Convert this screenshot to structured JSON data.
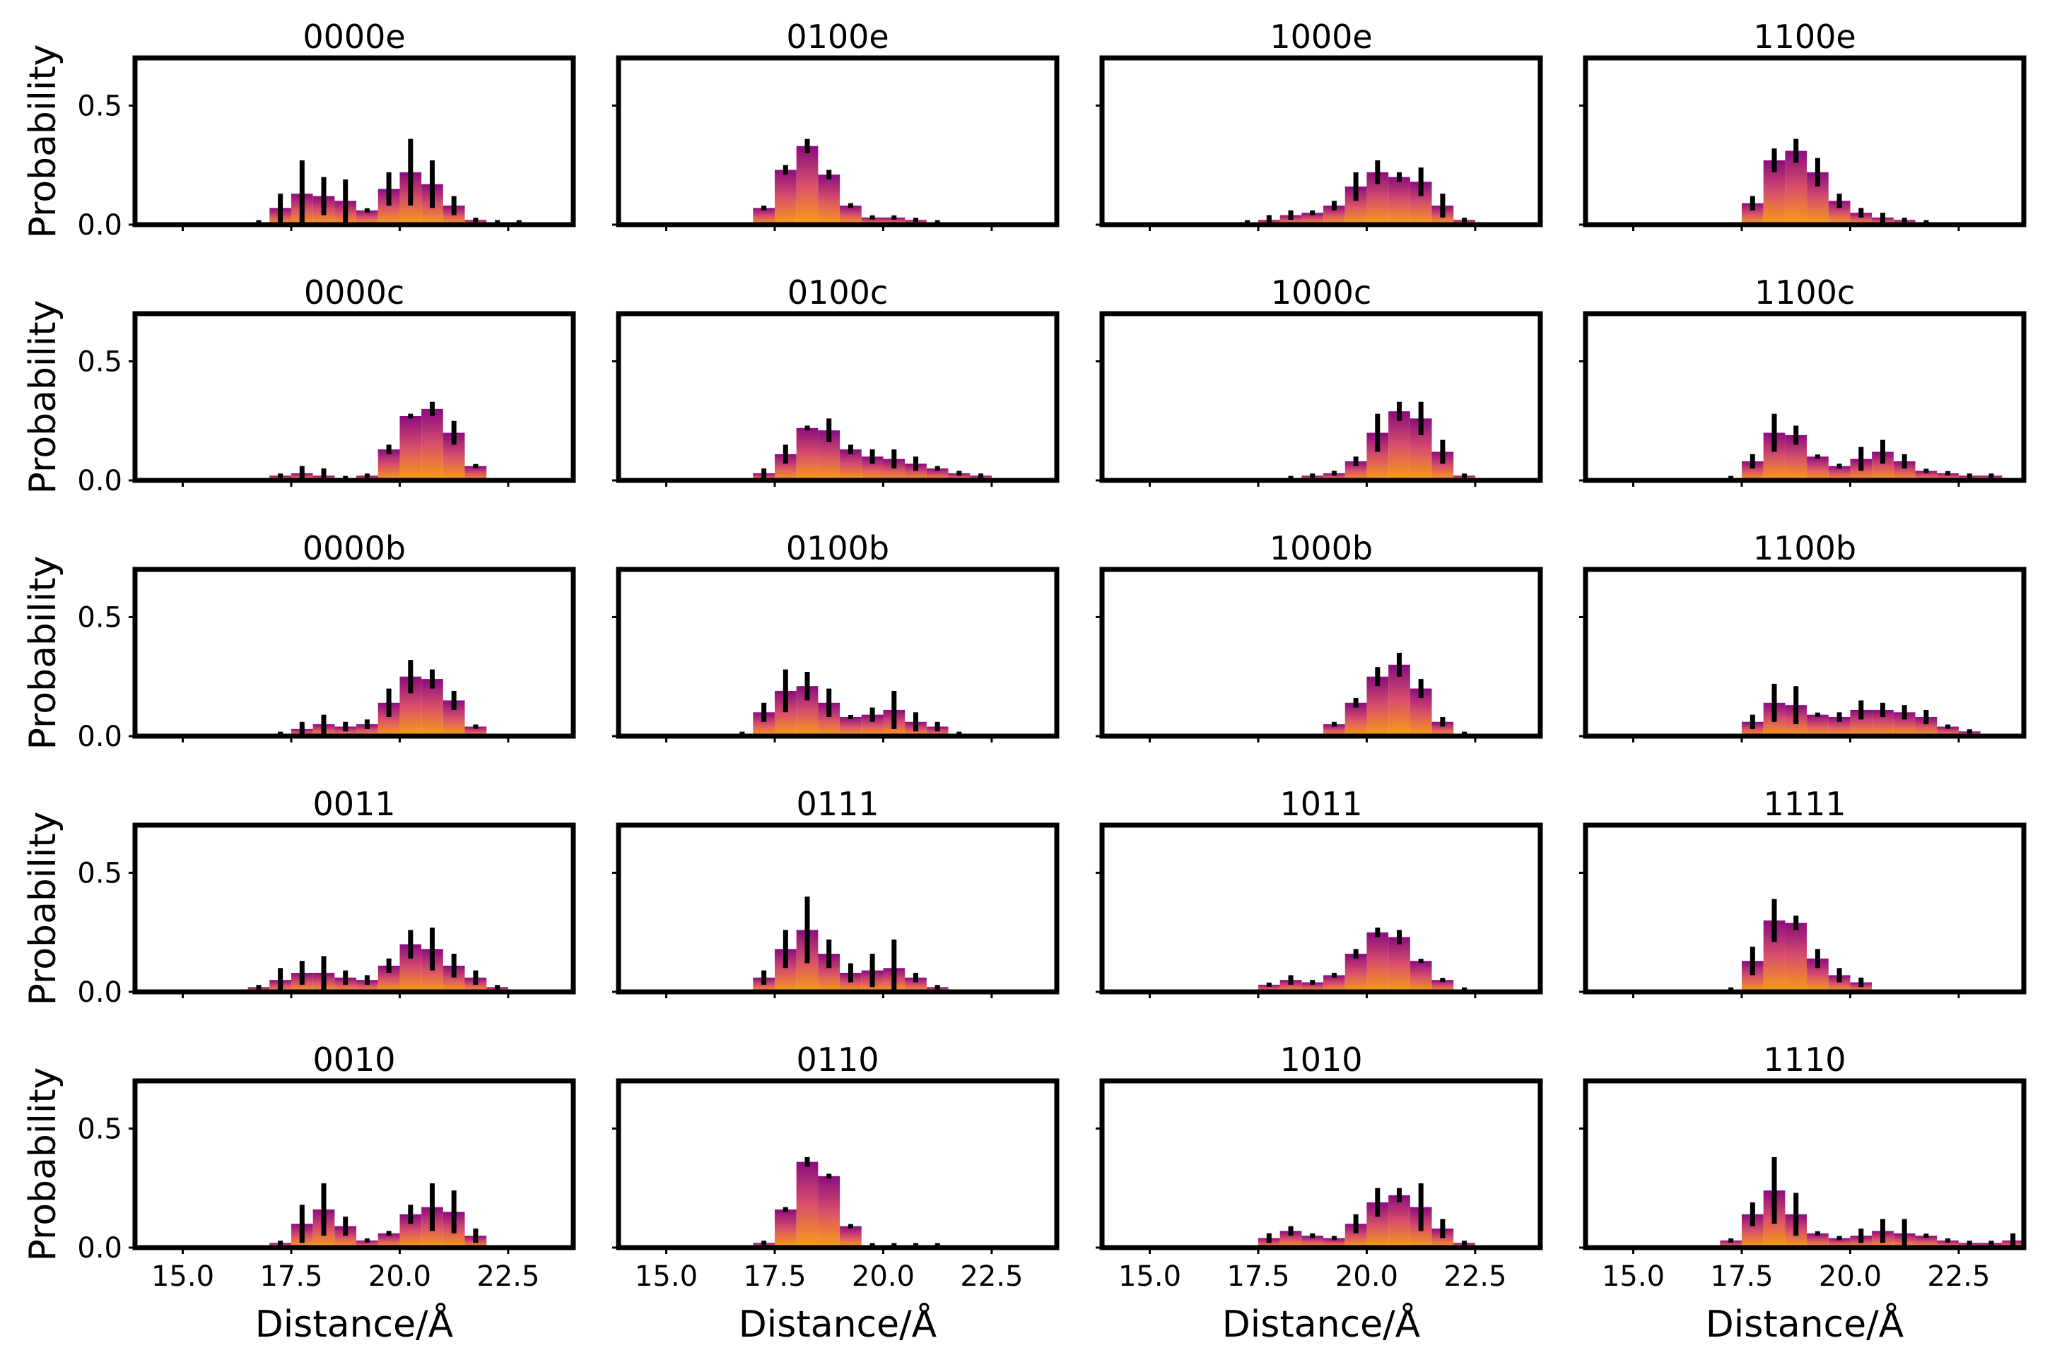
{
  "figure": {
    "xlabel": "Distance/Å",
    "ylabel": "Probability",
    "x_ticks": [
      "15.0",
      "17.5",
      "20.0",
      "22.5"
    ],
    "y_ticks": [
      "0.0",
      "0.5"
    ],
    "colors": {
      "bar_top": "#8a0c80",
      "bar_bottom": "#f79f13",
      "error_bar": "#000000",
      "frame": "#000000"
    }
  },
  "chart_data": [
    {
      "type": "bar",
      "title": "0000e",
      "xlim": [
        13.9,
        24.0
      ],
      "ylim": [
        0,
        0.7
      ],
      "bin_width": 0.5,
      "x": [
        16.75,
        17.25,
        17.75,
        18.25,
        18.75,
        19.25,
        19.75,
        20.25,
        20.75,
        21.25,
        21.75,
        22.25,
        22.75
      ],
      "values": [
        0.01,
        0.07,
        0.13,
        0.12,
        0.1,
        0.06,
        0.15,
        0.22,
        0.17,
        0.08,
        0.02,
        0.01,
        0.01
      ],
      "errors": [
        0,
        0.06,
        0.14,
        0.08,
        0.09,
        0,
        0.07,
        0.14,
        0.1,
        0.04,
        0,
        0,
        0
      ]
    },
    {
      "type": "bar",
      "title": "0100e",
      "xlim": [
        13.9,
        24.0
      ],
      "ylim": [
        0,
        0.7
      ],
      "bin_width": 0.5,
      "x": [
        17.25,
        17.75,
        18.25,
        18.75,
        19.25,
        19.75,
        20.25,
        20.75,
        21.25
      ],
      "values": [
        0.07,
        0.23,
        0.33,
        0.21,
        0.08,
        0.03,
        0.03,
        0.02,
        0.01
      ],
      "errors": [
        0.01,
        0.02,
        0.03,
        0.02,
        0.01,
        0,
        0,
        0,
        0
      ]
    },
    {
      "type": "bar",
      "title": "1000e",
      "xlim": [
        13.9,
        24.0
      ],
      "ylim": [
        0,
        0.7
      ],
      "bin_width": 0.5,
      "x": [
        17.25,
        17.75,
        18.25,
        18.75,
        19.25,
        19.75,
        20.25,
        20.75,
        21.25,
        21.75,
        22.25
      ],
      "values": [
        0.01,
        0.02,
        0.04,
        0.05,
        0.08,
        0.16,
        0.22,
        0.2,
        0.18,
        0.08,
        0.02
      ],
      "errors": [
        0,
        0.02,
        0.02,
        0.01,
        0.02,
        0.06,
        0.05,
        0.02,
        0.06,
        0.05,
        0
      ]
    },
    {
      "type": "bar",
      "title": "1100e",
      "xlim": [
        13.9,
        24.0
      ],
      "ylim": [
        0,
        0.7
      ],
      "bin_width": 0.5,
      "x": [
        17.75,
        18.25,
        18.75,
        19.25,
        19.75,
        20.25,
        20.75,
        21.25,
        21.75
      ],
      "values": [
        0.09,
        0.27,
        0.31,
        0.22,
        0.1,
        0.05,
        0.03,
        0.02,
        0.01
      ],
      "errors": [
        0.03,
        0.05,
        0.05,
        0.06,
        0.03,
        0.02,
        0.02,
        0,
        0
      ]
    },
    {
      "type": "bar",
      "title": "0000c",
      "xlim": [
        13.9,
        24.0
      ],
      "ylim": [
        0,
        0.7
      ],
      "bin_width": 0.5,
      "x": [
        17.25,
        17.75,
        18.25,
        18.75,
        19.25,
        19.75,
        20.25,
        20.75,
        21.25,
        21.75
      ],
      "values": [
        0.02,
        0.03,
        0.02,
        0.01,
        0.02,
        0.13,
        0.27,
        0.3,
        0.2,
        0.06
      ],
      "errors": [
        0,
        0.03,
        0.03,
        0,
        0,
        0.02,
        0.01,
        0.03,
        0.05,
        0
      ]
    },
    {
      "type": "bar",
      "title": "0100c",
      "xlim": [
        13.9,
        24.0
      ],
      "ylim": [
        0,
        0.7
      ],
      "bin_width": 0.5,
      "x": [
        17.25,
        17.75,
        18.25,
        18.75,
        19.25,
        19.75,
        20.25,
        20.75,
        21.25,
        21.75,
        22.25
      ],
      "values": [
        0.03,
        0.11,
        0.22,
        0.21,
        0.13,
        0.1,
        0.09,
        0.07,
        0.05,
        0.03,
        0.02
      ],
      "errors": [
        0.02,
        0.04,
        0.01,
        0.05,
        0.02,
        0.03,
        0.04,
        0.03,
        0.01,
        0.01,
        0
      ]
    },
    {
      "type": "bar",
      "title": "1000c",
      "xlim": [
        13.9,
        24.0
      ],
      "ylim": [
        0,
        0.7
      ],
      "bin_width": 0.5,
      "x": [
        18.25,
        18.75,
        19.25,
        19.75,
        20.25,
        20.75,
        21.25,
        21.75,
        22.25
      ],
      "values": [
        0.01,
        0.02,
        0.03,
        0.08,
        0.2,
        0.29,
        0.26,
        0.12,
        0.02
      ],
      "errors": [
        0,
        0,
        0.01,
        0.02,
        0.08,
        0.04,
        0.07,
        0.05,
        0
      ]
    },
    {
      "type": "bar",
      "title": "1100c",
      "xlim": [
        13.9,
        24.0
      ],
      "ylim": [
        0,
        0.7
      ],
      "bin_width": 0.5,
      "x": [
        17.25,
        17.75,
        18.25,
        18.75,
        19.25,
        19.75,
        20.25,
        20.75,
        21.25,
        21.75,
        22.25,
        22.75,
        23.25
      ],
      "values": [
        0.01,
        0.08,
        0.2,
        0.19,
        0.1,
        0.06,
        0.09,
        0.12,
        0.08,
        0.04,
        0.03,
        0.02,
        0.02
      ],
      "errors": [
        0,
        0.03,
        0.08,
        0.04,
        0,
        0.01,
        0.05,
        0.05,
        0.03,
        0,
        0,
        0,
        0
      ]
    },
    {
      "type": "bar",
      "title": "0000b",
      "xlim": [
        13.9,
        24.0
      ],
      "ylim": [
        0,
        0.7
      ],
      "bin_width": 0.5,
      "x": [
        17.25,
        17.75,
        18.25,
        18.75,
        19.25,
        19.75,
        20.25,
        20.75,
        21.25,
        21.75
      ],
      "values": [
        0.01,
        0.03,
        0.05,
        0.04,
        0.05,
        0.14,
        0.25,
        0.24,
        0.15,
        0.04
      ],
      "errors": [
        0,
        0.03,
        0.04,
        0.02,
        0.02,
        0.06,
        0.07,
        0.04,
        0.04,
        0
      ]
    },
    {
      "type": "bar",
      "title": "0100b",
      "xlim": [
        13.9,
        24.0
      ],
      "ylim": [
        0,
        0.7
      ],
      "bin_width": 0.5,
      "x": [
        16.75,
        17.25,
        17.75,
        18.25,
        18.75,
        19.25,
        19.75,
        20.25,
        20.75,
        21.25,
        21.75
      ],
      "values": [
        0.01,
        0.1,
        0.19,
        0.21,
        0.14,
        0.08,
        0.09,
        0.11,
        0.06,
        0.04,
        0.01
      ],
      "errors": [
        0,
        0.04,
        0.09,
        0.06,
        0.06,
        0,
        0.03,
        0.08,
        0.04,
        0.02,
        0
      ]
    },
    {
      "type": "bar",
      "title": "1000b",
      "xlim": [
        13.9,
        24.0
      ],
      "ylim": [
        0,
        0.7
      ],
      "bin_width": 0.5,
      "x": [
        19.25,
        19.75,
        20.25,
        20.75,
        21.25,
        21.75,
        22.25
      ],
      "values": [
        0.05,
        0.14,
        0.25,
        0.3,
        0.2,
        0.06,
        0.01
      ],
      "errors": [
        0.01,
        0.02,
        0.04,
        0.05,
        0.04,
        0.02,
        0
      ]
    },
    {
      "type": "bar",
      "title": "1100b",
      "xlim": [
        13.9,
        24.0
      ],
      "ylim": [
        0,
        0.7
      ],
      "bin_width": 0.5,
      "x": [
        17.75,
        18.25,
        18.75,
        19.25,
        19.75,
        20.25,
        20.75,
        21.25,
        21.75,
        22.25,
        22.75
      ],
      "values": [
        0.06,
        0.14,
        0.13,
        0.09,
        0.08,
        0.11,
        0.11,
        0.1,
        0.08,
        0.04,
        0.02
      ],
      "errors": [
        0.03,
        0.08,
        0.08,
        0,
        0.02,
        0.04,
        0.03,
        0.03,
        0.03,
        0,
        0
      ]
    },
    {
      "type": "bar",
      "title": "0011",
      "xlim": [
        13.9,
        24.0
      ],
      "ylim": [
        0,
        0.7
      ],
      "bin_width": 0.5,
      "x": [
        16.75,
        17.25,
        17.75,
        18.25,
        18.75,
        19.25,
        19.75,
        20.25,
        20.75,
        21.25,
        21.75,
        22.25
      ],
      "values": [
        0.02,
        0.05,
        0.08,
        0.08,
        0.06,
        0.05,
        0.11,
        0.2,
        0.18,
        0.11,
        0.06,
        0.02
      ],
      "errors": [
        0,
        0.05,
        0.05,
        0.07,
        0.03,
        0.02,
        0.03,
        0.06,
        0.09,
        0.05,
        0.03,
        0
      ]
    },
    {
      "type": "bar",
      "title": "0111",
      "xlim": [
        13.9,
        24.0
      ],
      "ylim": [
        0,
        0.7
      ],
      "bin_width": 0.5,
      "x": [
        17.25,
        17.75,
        18.25,
        18.75,
        19.25,
        19.75,
        20.25,
        20.75,
        21.25
      ],
      "values": [
        0.06,
        0.18,
        0.26,
        0.16,
        0.08,
        0.09,
        0.1,
        0.06,
        0.02
      ],
      "errors": [
        0.03,
        0.08,
        0.14,
        0.06,
        0.04,
        0.07,
        0.12,
        0.02,
        0
      ]
    },
    {
      "type": "bar",
      "title": "1011",
      "xlim": [
        13.9,
        24.0
      ],
      "ylim": [
        0,
        0.7
      ],
      "bin_width": 0.5,
      "x": [
        17.75,
        18.25,
        18.75,
        19.25,
        19.75,
        20.25,
        20.75,
        21.25,
        21.75,
        22.25
      ],
      "values": [
        0.03,
        0.05,
        0.04,
        0.07,
        0.16,
        0.25,
        0.23,
        0.13,
        0.05,
        0.01
      ],
      "errors": [
        0,
        0.02,
        0.01,
        0.01,
        0.02,
        0.02,
        0.03,
        0,
        0,
        0
      ]
    },
    {
      "type": "bar",
      "title": "1111",
      "xlim": [
        13.9,
        24.0
      ],
      "ylim": [
        0,
        0.7
      ],
      "bin_width": 0.5,
      "x": [
        17.25,
        17.75,
        18.25,
        18.75,
        19.25,
        19.75,
        20.25
      ],
      "values": [
        0.01,
        0.13,
        0.3,
        0.29,
        0.14,
        0.07,
        0.04
      ],
      "errors": [
        0,
        0.06,
        0.09,
        0.03,
        0.04,
        0.03,
        0.02
      ]
    },
    {
      "type": "bar",
      "title": "0010",
      "xlim": [
        13.9,
        24.0
      ],
      "ylim": [
        0,
        0.7
      ],
      "bin_width": 0.5,
      "x": [
        17.25,
        17.75,
        18.25,
        18.75,
        19.25,
        19.75,
        20.25,
        20.75,
        21.25,
        21.75
      ],
      "values": [
        0.02,
        0.1,
        0.16,
        0.09,
        0.03,
        0.06,
        0.14,
        0.17,
        0.15,
        0.05
      ],
      "errors": [
        0,
        0.08,
        0.11,
        0.04,
        0,
        0.01,
        0.04,
        0.1,
        0.09,
        0.03
      ]
    },
    {
      "type": "bar",
      "title": "0110",
      "xlim": [
        13.9,
        24.0
      ],
      "ylim": [
        0,
        0.7
      ],
      "bin_width": 0.5,
      "x": [
        17.25,
        17.75,
        18.25,
        18.75,
        19.25,
        19.75,
        20.25,
        20.75,
        21.25
      ],
      "values": [
        0.02,
        0.16,
        0.36,
        0.3,
        0.09,
        0.01,
        0.01,
        0.01,
        0.01
      ],
      "errors": [
        0,
        0.01,
        0.02,
        0.01,
        0,
        0,
        0,
        0,
        0
      ]
    },
    {
      "type": "bar",
      "title": "1010",
      "xlim": [
        13.9,
        24.0
      ],
      "ylim": [
        0,
        0.7
      ],
      "bin_width": 0.5,
      "x": [
        17.75,
        18.25,
        18.75,
        19.25,
        19.75,
        20.25,
        20.75,
        21.25,
        21.75,
        22.25
      ],
      "values": [
        0.04,
        0.07,
        0.05,
        0.04,
        0.1,
        0.19,
        0.22,
        0.17,
        0.08,
        0.02
      ],
      "errors": [
        0.02,
        0.02,
        0.01,
        0,
        0.04,
        0.06,
        0.03,
        0.1,
        0.04,
        0
      ]
    },
    {
      "type": "bar",
      "title": "1110",
      "xlim": [
        13.9,
        24.0
      ],
      "ylim": [
        0,
        0.7
      ],
      "bin_width": 0.5,
      "x": [
        17.25,
        17.75,
        18.25,
        18.75,
        19.25,
        19.75,
        20.25,
        20.75,
        21.25,
        21.75,
        22.25,
        22.75,
        23.25,
        23.75
      ],
      "values": [
        0.03,
        0.14,
        0.24,
        0.14,
        0.06,
        0.04,
        0.05,
        0.07,
        0.06,
        0.05,
        0.03,
        0.02,
        0.02,
        0.03
      ],
      "errors": [
        0,
        0.05,
        0.14,
        0.09,
        0,
        0,
        0.03,
        0.05,
        0.06,
        0,
        0,
        0,
        0,
        0.03
      ]
    }
  ]
}
